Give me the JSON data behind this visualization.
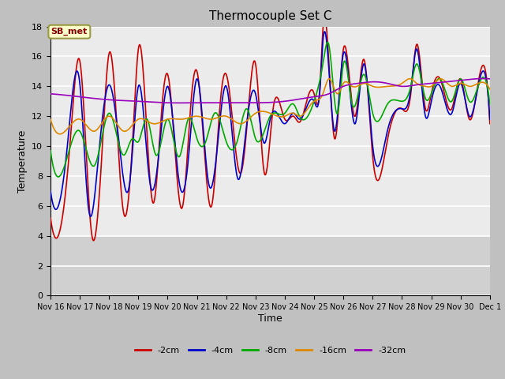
{
  "title": "Thermocouple Set C",
  "xlabel": "Time",
  "ylabel": "Temperature",
  "ylim": [
    0,
    18
  ],
  "yticks": [
    0,
    2,
    4,
    6,
    8,
    10,
    12,
    14,
    16,
    18
  ],
  "annotation_text": "SB_met",
  "colors": {
    "-2cm": "#cc0000",
    "-4cm": "#0000cc",
    "-8cm": "#00aa00",
    "-16cm": "#dd8800",
    "-32cm": "#9900bb"
  },
  "legend_labels": [
    "-2cm",
    "-4cm",
    "-8cm",
    "-16cm",
    "-32cm"
  ],
  "fig_bg": "#c8c8c8",
  "ax_bg_upper": "#f0f0f0",
  "ax_bg_lower": "#d8d8d8",
  "grid_color": "#ffffff"
}
